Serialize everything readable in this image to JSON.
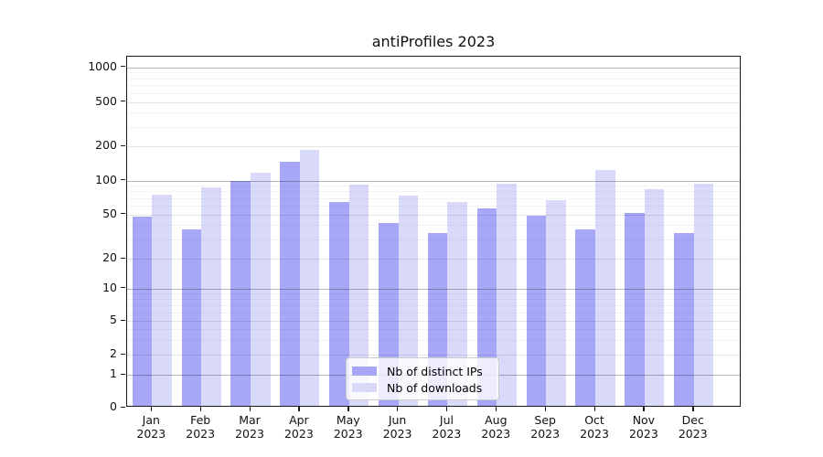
{
  "page": {
    "background": "#ffffff"
  },
  "chart_data": {
    "type": "bar",
    "title": "antiProfiles 2023",
    "categories": [
      "Jan 2023",
      "Feb 2023",
      "Mar 2023",
      "Apr 2023",
      "May 2023",
      "Jun 2023",
      "Jul 2023",
      "Aug 2023",
      "Sep 2023",
      "Oct 2023",
      "Nov 2023",
      "Dec 2023"
    ],
    "series": [
      {
        "name": "Nb of distinct IPs",
        "color": "#a7a7f8",
        "values": [
          46,
          35,
          96,
          140,
          62,
          40,
          33,
          54,
          47,
          35,
          50,
          33
        ]
      },
      {
        "name": "Nb of downloads",
        "color": "#d9d9fa",
        "values": [
          72,
          83,
          112,
          180,
          88,
          71,
          62,
          91,
          64,
          119,
          80,
          90
        ]
      }
    ],
    "xlabel": "",
    "ylabel": "",
    "yscale": "symlog",
    "ylim": [
      0,
      1100
    ],
    "yticks": [
      0,
      1,
      2,
      5,
      10,
      20,
      50,
      100,
      200,
      500,
      1000
    ],
    "ytick_labels": [
      "0",
      "1",
      "2",
      "5",
      "10",
      "20",
      "50",
      "100",
      "200",
      "500",
      "1000"
    ],
    "grid": true,
    "grid_on_top": true,
    "legend_position": "inside lower-center",
    "colors": {
      "bar_ips": "#a7a7f8",
      "bar_downloads": "#d9d9fa",
      "grid_major": "#b8b8b8",
      "grid_minor": "#ededed",
      "spine": "#1a1a1a",
      "background": "#ffffff"
    }
  }
}
